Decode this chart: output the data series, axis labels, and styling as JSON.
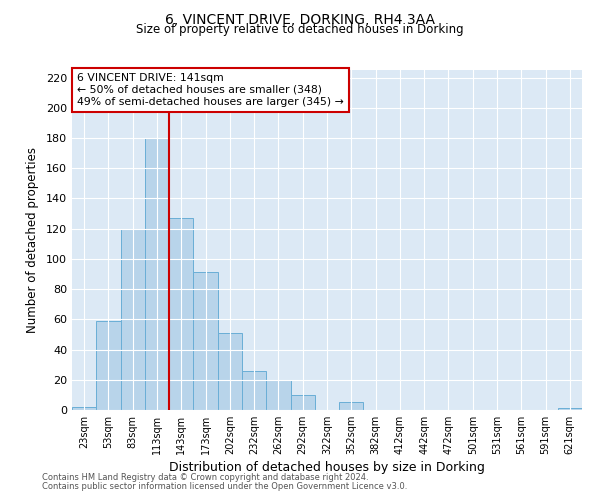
{
  "title": "6, VINCENT DRIVE, DORKING, RH4 3AA",
  "subtitle": "Size of property relative to detached houses in Dorking",
  "xlabel": "Distribution of detached houses by size in Dorking",
  "ylabel": "Number of detached properties",
  "bar_labels": [
    "23sqm",
    "53sqm",
    "83sqm",
    "113sqm",
    "143sqm",
    "173sqm",
    "202sqm",
    "232sqm",
    "262sqm",
    "292sqm",
    "322sqm",
    "352sqm",
    "382sqm",
    "412sqm",
    "442sqm",
    "472sqm",
    "501sqm",
    "531sqm",
    "561sqm",
    "591sqm",
    "621sqm"
  ],
  "bar_values": [
    2,
    59,
    120,
    180,
    127,
    91,
    51,
    26,
    20,
    10,
    0,
    5,
    0,
    0,
    0,
    0,
    0,
    0,
    0,
    0,
    1
  ],
  "bar_color": "#b8d4ea",
  "bar_edge_color": "#6aaed6",
  "vline_color": "#cc0000",
  "annotation_text": "6 VINCENT DRIVE: 141sqm\n← 50% of detached houses are smaller (348)\n49% of semi-detached houses are larger (345) →",
  "annotation_box_color": "#ffffff",
  "annotation_box_edge_color": "#cc0000",
  "ylim": [
    0,
    225
  ],
  "yticks": [
    0,
    20,
    40,
    60,
    80,
    100,
    120,
    140,
    160,
    180,
    200,
    220
  ],
  "background_color": "#dce9f5",
  "title_fontsize": 10,
  "subtitle_fontsize": 8.5,
  "footnote_line1": "Contains HM Land Registry data © Crown copyright and database right 2024.",
  "footnote_line2": "Contains public sector information licensed under the Open Government Licence v3.0."
}
